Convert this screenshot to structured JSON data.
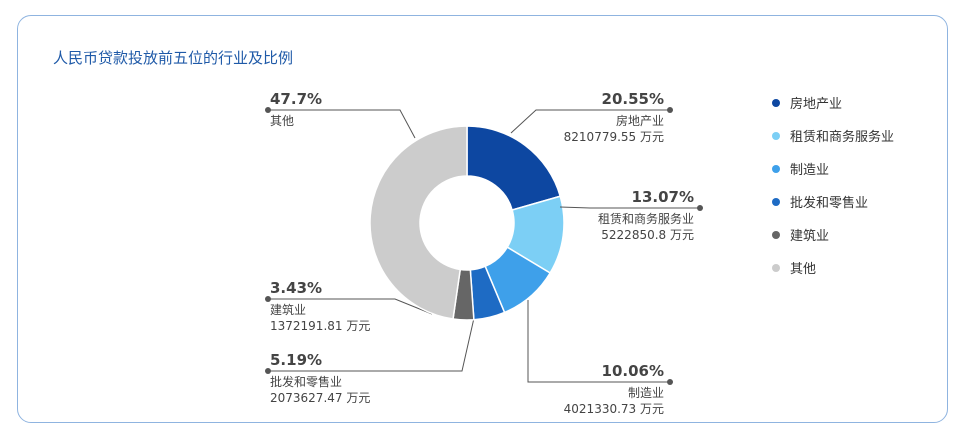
{
  "title": "人民币贷款投放前五位的行业及比例",
  "chart_data": {
    "type": "pie",
    "donut": true,
    "title": "人民币贷款投放前五位的行业及比例",
    "legend_position": "right",
    "slices": [
      {
        "label": "房地产业",
        "percent": 20.55,
        "percent_text": "20.55%",
        "amount_text": "8210779.55 万元",
        "color": "#0d47a1"
      },
      {
        "label": "租赁和商务服务业",
        "percent": 13.07,
        "percent_text": "13.07%",
        "amount_text": "5222850.8 万元",
        "color": "#7ccff5"
      },
      {
        "label": "制造业",
        "percent": 10.06,
        "percent_text": "10.06%",
        "amount_text": "4021330.73 万元",
        "color": "#3ea0ea"
      },
      {
        "label": "批发和零售业",
        "percent": 5.19,
        "percent_text": "5.19%",
        "amount_text": "2073627.47 万元",
        "color": "#1e6bc4"
      },
      {
        "label": "建筑业",
        "percent": 3.43,
        "percent_text": "3.43%",
        "amount_text": "1372191.81 万元",
        "color": "#666666"
      },
      {
        "label": "其他",
        "percent": 47.7,
        "percent_text": "47.7%",
        "amount_text": "",
        "color": "#cccccc"
      }
    ]
  }
}
